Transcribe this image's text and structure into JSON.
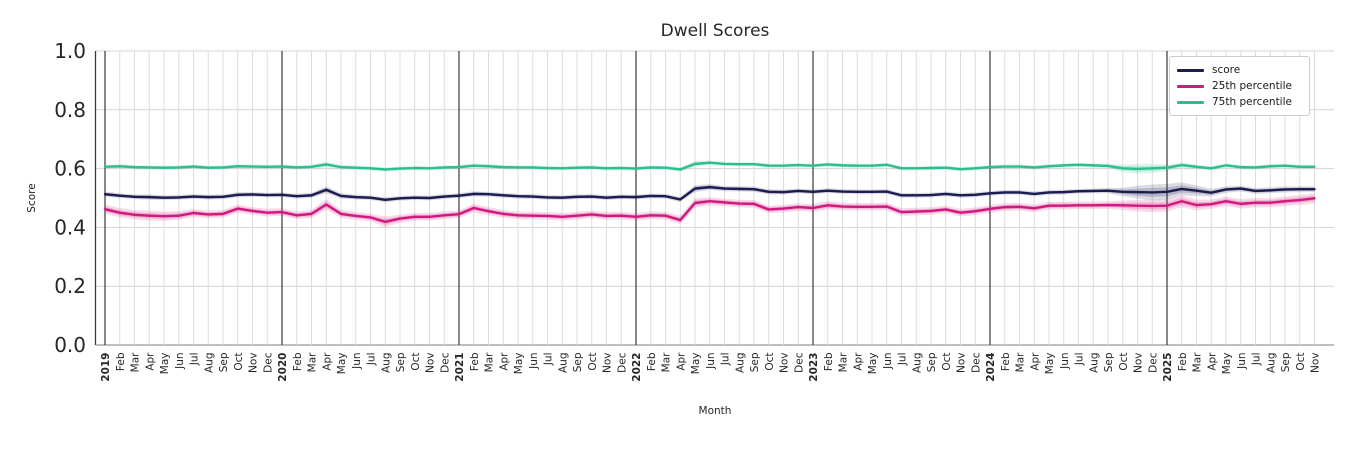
{
  "title": "Dwell Scores",
  "axes": {
    "y_label": "Score",
    "x_label": "Month",
    "y_tick_labels": [
      "0.0",
      "0.2",
      "0.4",
      "0.6",
      "0.8",
      "1.0"
    ]
  },
  "legend": {
    "items": [
      {
        "label": "score"
      },
      {
        "label": "25th percentile"
      },
      {
        "label": "75th percentile"
      }
    ]
  },
  "colors": {
    "score_line": "#1c1c52",
    "p25_line": "#d1187f",
    "p75_line": "#2cbe90",
    "grid_minor": "#dcdcdc",
    "grid_major": "#d4d4d4",
    "year_line": "#3a3a3a",
    "spine_left": "#3a3a3a",
    "spine_bottom": "#b5b5b5",
    "tick_text": "#262626"
  },
  "chart_data": {
    "type": "line",
    "title": "Dwell Scores",
    "xlabel": "Month",
    "ylabel": "Score",
    "ylim": [
      0.0,
      1.0
    ],
    "y_ticks": [
      0.0,
      0.2,
      0.4,
      0.6,
      0.8,
      1.0
    ],
    "grid": true,
    "legend_position": "upper right",
    "x_tick_labels": [
      "2019",
      "Feb",
      "Mar",
      "Apr",
      "May",
      "Jun",
      "Jul",
      "Aug",
      "Sep",
      "Oct",
      "Nov",
      "Dec",
      "2020",
      "Feb",
      "Mar",
      "Apr",
      "May",
      "Jun",
      "Jul",
      "Aug",
      "Sep",
      "Oct",
      "Nov",
      "Dec",
      "2021",
      "Feb",
      "Mar",
      "Apr",
      "May",
      "Jun",
      "Jul",
      "Aug",
      "Sep",
      "Oct",
      "Nov",
      "Dec",
      "2022",
      "Feb",
      "Mar",
      "Apr",
      "May",
      "Jun",
      "Jul",
      "Aug",
      "Sep",
      "Oct",
      "Nov",
      "Dec",
      "2023",
      "Feb",
      "Mar",
      "Apr",
      "May",
      "Jun",
      "Jul",
      "Aug",
      "Sep",
      "Oct",
      "Nov",
      "Dec",
      "2024",
      "Feb",
      "Mar",
      "Apr",
      "May",
      "Jun",
      "Jul",
      "Aug",
      "Sep",
      "Oct",
      "Nov",
      "Dec",
      "2025",
      "Feb",
      "Mar",
      "Apr",
      "May",
      "Jun",
      "Jul",
      "Aug",
      "Sep",
      "Oct",
      "Nov"
    ],
    "year_indices": [
      0,
      12,
      24,
      36,
      48,
      60,
      72
    ],
    "series": [
      {
        "name": "score",
        "color": "#1c1c52",
        "values": [
          0.513,
          0.508,
          0.504,
          0.503,
          0.501,
          0.502,
          0.505,
          0.503,
          0.504,
          0.511,
          0.512,
          0.51,
          0.511,
          0.506,
          0.509,
          0.528,
          0.507,
          0.503,
          0.501,
          0.494,
          0.499,
          0.501,
          0.5,
          0.505,
          0.508,
          0.514,
          0.513,
          0.509,
          0.506,
          0.505,
          0.502,
          0.501,
          0.504,
          0.505,
          0.501,
          0.504,
          0.503,
          0.507,
          0.506,
          0.495,
          0.532,
          0.537,
          0.532,
          0.531,
          0.53,
          0.521,
          0.52,
          0.524,
          0.521,
          0.525,
          0.522,
          0.521,
          0.521,
          0.522,
          0.509,
          0.509,
          0.51,
          0.514,
          0.509,
          0.511,
          0.516,
          0.519,
          0.519,
          0.514,
          0.519,
          0.52,
          0.523,
          0.524,
          0.525,
          0.521,
          0.52,
          0.519,
          0.521,
          0.531,
          0.525,
          0.518,
          0.529,
          0.532,
          0.524,
          0.526,
          0.529,
          0.53,
          0.53
        ],
        "band": [
          0.009,
          0.008,
          0.008,
          0.009,
          0.008,
          0.008,
          0.008,
          0.008,
          0.008,
          0.009,
          0.008,
          0.008,
          0.008,
          0.008,
          0.009,
          0.012,
          0.009,
          0.008,
          0.008,
          0.009,
          0.008,
          0.008,
          0.008,
          0.008,
          0.008,
          0.009,
          0.008,
          0.008,
          0.008,
          0.008,
          0.008,
          0.008,
          0.008,
          0.008,
          0.008,
          0.008,
          0.008,
          0.008,
          0.008,
          0.009,
          0.012,
          0.01,
          0.009,
          0.009,
          0.009,
          0.009,
          0.008,
          0.008,
          0.008,
          0.008,
          0.008,
          0.008,
          0.008,
          0.008,
          0.008,
          0.008,
          0.008,
          0.008,
          0.008,
          0.008,
          0.008,
          0.008,
          0.008,
          0.008,
          0.008,
          0.008,
          0.008,
          0.008,
          0.009,
          0.014,
          0.022,
          0.027,
          0.027,
          0.022,
          0.018,
          0.013,
          0.011,
          0.01,
          0.01,
          0.01,
          0.01,
          0.01,
          0.01
        ]
      },
      {
        "name": "25th percentile",
        "color": "#d1187f",
        "values": [
          0.462,
          0.45,
          0.443,
          0.44,
          0.438,
          0.44,
          0.449,
          0.444,
          0.446,
          0.464,
          0.456,
          0.45,
          0.452,
          0.441,
          0.446,
          0.478,
          0.446,
          0.439,
          0.434,
          0.419,
          0.43,
          0.436,
          0.436,
          0.441,
          0.445,
          0.466,
          0.455,
          0.446,
          0.441,
          0.44,
          0.439,
          0.436,
          0.44,
          0.444,
          0.439,
          0.44,
          0.436,
          0.441,
          0.44,
          0.425,
          0.483,
          0.489,
          0.485,
          0.481,
          0.48,
          0.461,
          0.464,
          0.469,
          0.466,
          0.475,
          0.471,
          0.47,
          0.47,
          0.471,
          0.452,
          0.454,
          0.456,
          0.461,
          0.45,
          0.455,
          0.463,
          0.469,
          0.47,
          0.465,
          0.474,
          0.474,
          0.475,
          0.475,
          0.476,
          0.475,
          0.474,
          0.473,
          0.474,
          0.489,
          0.476,
          0.479,
          0.489,
          0.48,
          0.484,
          0.484,
          0.489,
          0.493,
          0.499
        ],
        "band": [
          0.016,
          0.016,
          0.016,
          0.017,
          0.016,
          0.015,
          0.014,
          0.013,
          0.013,
          0.014,
          0.013,
          0.013,
          0.013,
          0.013,
          0.014,
          0.018,
          0.014,
          0.013,
          0.013,
          0.018,
          0.014,
          0.013,
          0.013,
          0.013,
          0.013,
          0.015,
          0.014,
          0.013,
          0.013,
          0.013,
          0.013,
          0.013,
          0.013,
          0.013,
          0.013,
          0.013,
          0.013,
          0.013,
          0.013,
          0.014,
          0.016,
          0.014,
          0.013,
          0.013,
          0.013,
          0.013,
          0.013,
          0.013,
          0.013,
          0.014,
          0.013,
          0.013,
          0.013,
          0.013,
          0.013,
          0.013,
          0.013,
          0.013,
          0.013,
          0.013,
          0.013,
          0.013,
          0.013,
          0.013,
          0.013,
          0.013,
          0.013,
          0.013,
          0.013,
          0.016,
          0.02,
          0.021,
          0.02,
          0.02,
          0.018,
          0.016,
          0.016,
          0.016,
          0.016,
          0.016,
          0.016,
          0.017,
          0.018
        ]
      },
      {
        "name": "75th percentile",
        "color": "#2cbe90",
        "values": [
          0.606,
          0.608,
          0.605,
          0.604,
          0.603,
          0.604,
          0.607,
          0.603,
          0.604,
          0.608,
          0.607,
          0.606,
          0.607,
          0.604,
          0.606,
          0.614,
          0.605,
          0.603,
          0.601,
          0.597,
          0.6,
          0.602,
          0.601,
          0.604,
          0.605,
          0.61,
          0.608,
          0.605,
          0.604,
          0.604,
          0.602,
          0.601,
          0.603,
          0.604,
          0.601,
          0.602,
          0.6,
          0.604,
          0.603,
          0.597,
          0.616,
          0.62,
          0.616,
          0.615,
          0.615,
          0.61,
          0.61,
          0.612,
          0.61,
          0.614,
          0.611,
          0.61,
          0.61,
          0.613,
          0.601,
          0.601,
          0.602,
          0.603,
          0.598,
          0.601,
          0.605,
          0.607,
          0.607,
          0.604,
          0.608,
          0.611,
          0.613,
          0.611,
          0.609,
          0.601,
          0.599,
          0.601,
          0.603,
          0.612,
          0.606,
          0.601,
          0.611,
          0.605,
          0.604,
          0.608,
          0.61,
          0.606,
          0.606
        ],
        "band": [
          0.007,
          0.007,
          0.007,
          0.007,
          0.007,
          0.007,
          0.007,
          0.007,
          0.007,
          0.007,
          0.007,
          0.007,
          0.007,
          0.007,
          0.007,
          0.01,
          0.008,
          0.007,
          0.007,
          0.008,
          0.007,
          0.007,
          0.007,
          0.007,
          0.007,
          0.008,
          0.007,
          0.007,
          0.007,
          0.007,
          0.007,
          0.007,
          0.007,
          0.007,
          0.007,
          0.007,
          0.007,
          0.007,
          0.007,
          0.008,
          0.01,
          0.008,
          0.007,
          0.007,
          0.007,
          0.007,
          0.007,
          0.007,
          0.007,
          0.007,
          0.007,
          0.007,
          0.007,
          0.007,
          0.007,
          0.007,
          0.007,
          0.007,
          0.007,
          0.007,
          0.007,
          0.007,
          0.007,
          0.007,
          0.007,
          0.007,
          0.007,
          0.007,
          0.008,
          0.013,
          0.017,
          0.016,
          0.012,
          0.009,
          0.008,
          0.007,
          0.007,
          0.007,
          0.007,
          0.007,
          0.007,
          0.007,
          0.007
        ]
      }
    ]
  }
}
